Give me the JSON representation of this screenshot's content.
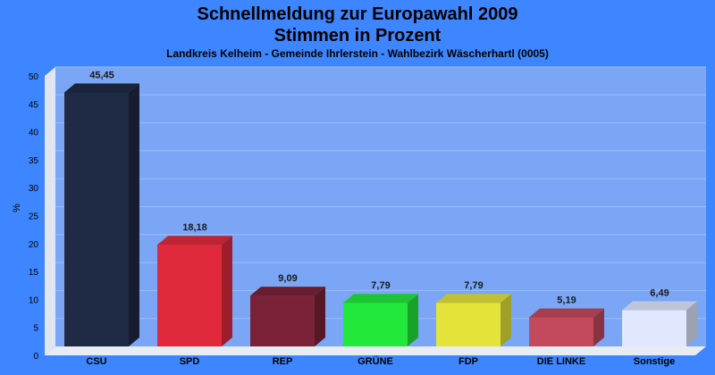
{
  "chart_data": {
    "type": "bar",
    "title": "Schnellmeldung zur Europawahl 2009",
    "subtitle": "Stimmen in Prozent",
    "caption": "Landkreis Kelheim - Gemeinde Ihrlerstein - Wahlbezirk Wäscherhartl (0005)",
    "ylabel": "%",
    "xlabel": "",
    "ylim": [
      0,
      50
    ],
    "yticks": [
      0,
      5,
      10,
      15,
      20,
      25,
      30,
      35,
      40,
      45,
      50
    ],
    "grid": true,
    "categories": [
      "CSU",
      "SPD",
      "REP",
      "GRÜNE",
      "FDP",
      "DIE LINKE",
      "Sonstige"
    ],
    "values": [
      45.45,
      18.18,
      9.09,
      7.79,
      7.79,
      5.19,
      6.49
    ],
    "value_labels": [
      "45,45",
      "18,18",
      "9,09",
      "7,79",
      "7,79",
      "5,19",
      "6,49"
    ],
    "colors": [
      "#1f2a44",
      "#e02a3c",
      "#7a2238",
      "#22e83c",
      "#e3e33a",
      "#c24a5c",
      "#e0e8ff"
    ]
  },
  "colors": {
    "background": "#3d86ff",
    "plot_area": "#7aa6f5"
  }
}
